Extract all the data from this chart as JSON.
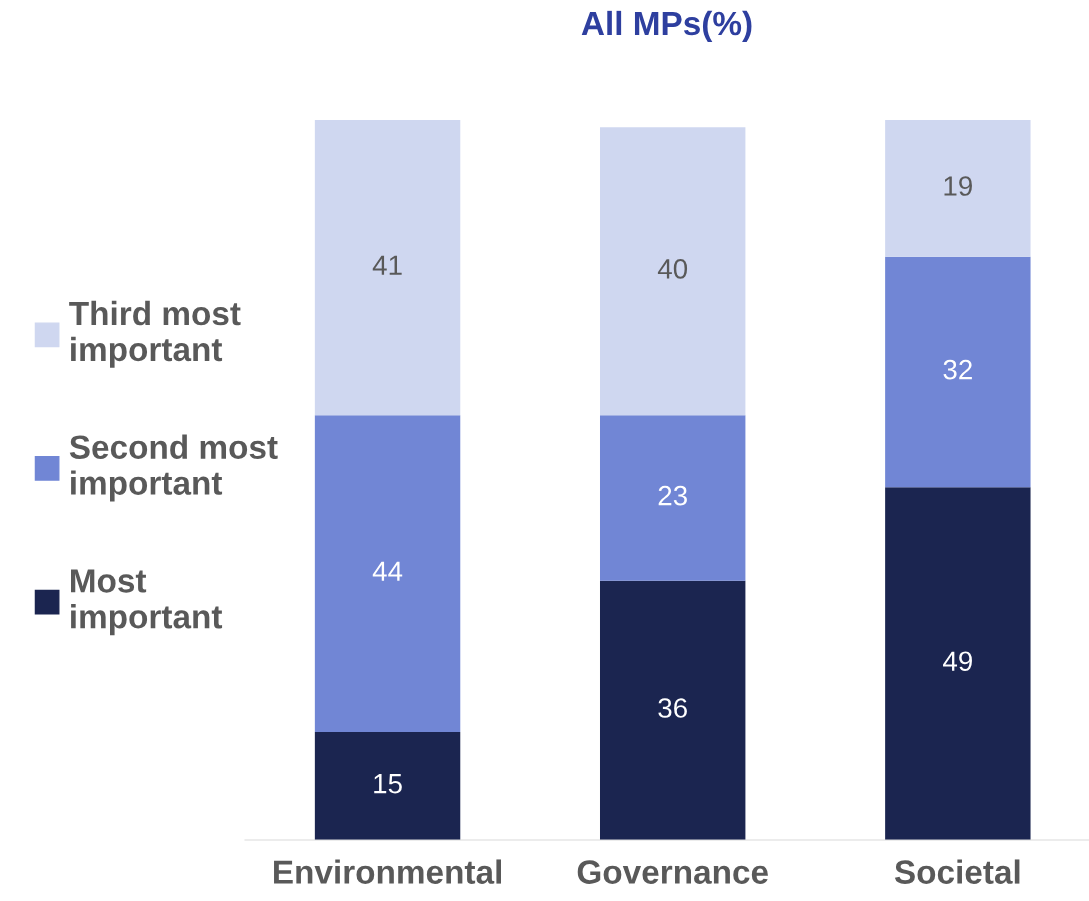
{
  "chart_data": {
    "type": "bar",
    "title": "All MPs(%)",
    "stacked": true,
    "data_labels": true,
    "legend": "left",
    "grid": false,
    "categories": [
      "Environmental",
      "Governance",
      "Societal"
    ],
    "series": [
      {
        "name": "Most important",
        "color": "#1b2550",
        "values": [
          15,
          36,
          49
        ]
      },
      {
        "name": "Second most important",
        "color": "#7186d5",
        "values": [
          44,
          23,
          32
        ]
      },
      {
        "name": "Third most important",
        "color": "#cfd7f0",
        "values": [
          41,
          40,
          19
        ]
      }
    ]
  }
}
